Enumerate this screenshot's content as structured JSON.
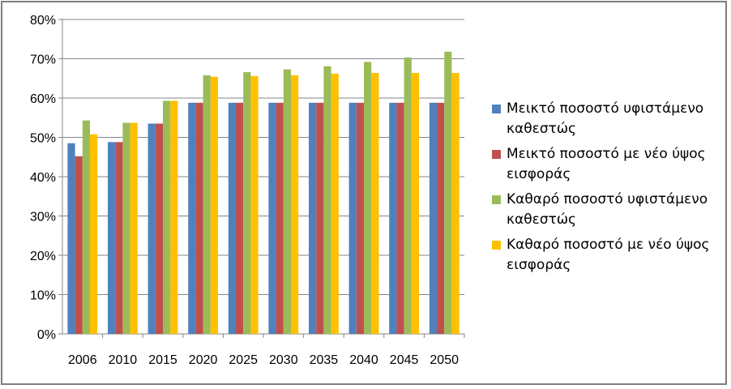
{
  "chart_data": {
    "type": "bar",
    "categories": [
      "2006",
      "2010",
      "2015",
      "2020",
      "2025",
      "2030",
      "2035",
      "2040",
      "2045",
      "2050"
    ],
    "series": [
      {
        "name": "Μεικτό ποσοστό υφιστάμενο καθεστώς",
        "color": "#4f81bd",
        "values": [
          48.5,
          48.8,
          53.5,
          58.8,
          58.8,
          58.8,
          58.8,
          58.8,
          58.8,
          58.8
        ]
      },
      {
        "name": "Μεικτό ποσοστό με νέο ύψος εισφοράς",
        "color": "#c0504d",
        "values": [
          45.2,
          48.8,
          53.5,
          58.8,
          58.8,
          58.8,
          58.8,
          58.8,
          58.8,
          58.8
        ]
      },
      {
        "name": "Καθαρό ποσοστό υφιστάμενο καθεστώς",
        "color": "#9bbb59",
        "values": [
          54.3,
          53.7,
          59.3,
          65.8,
          66.6,
          67.3,
          68.1,
          69.2,
          70.3,
          71.8
        ]
      },
      {
        "name": "Καθαρό ποσοστό με νέο ύψος εισφοράς",
        "color": "#ffc000",
        "values": [
          50.8,
          53.7,
          59.3,
          65.4,
          65.6,
          65.8,
          66.2,
          66.4,
          66.4,
          66.4
        ]
      }
    ],
    "ylim": [
      0,
      80
    ],
    "yticks": [
      "0%",
      "10%",
      "20%",
      "30%",
      "40%",
      "50%",
      "60%",
      "70%",
      "80%"
    ],
    "title": "",
    "xlabel": "",
    "ylabel": "",
    "grid": true,
    "legend_position": "right"
  }
}
